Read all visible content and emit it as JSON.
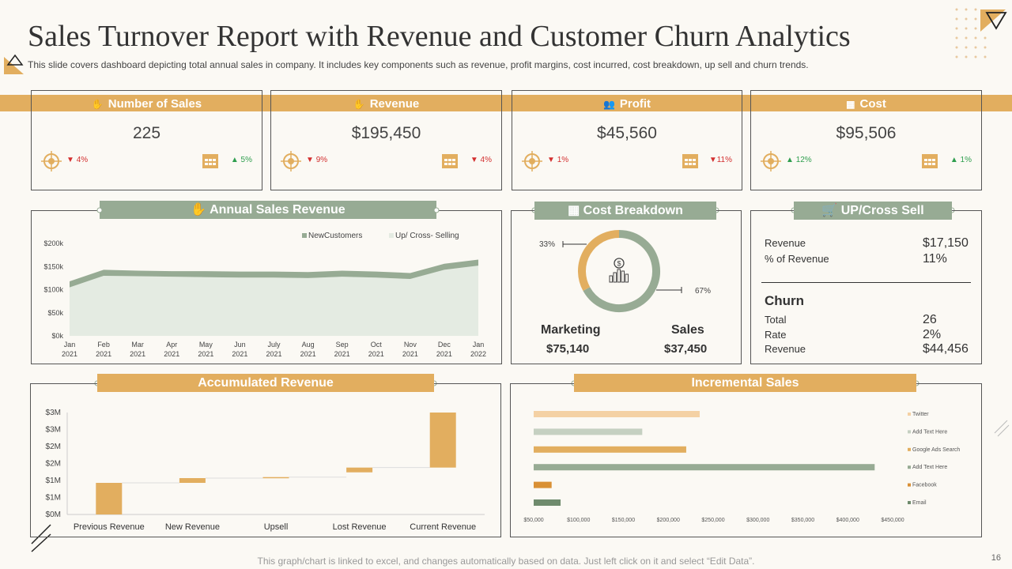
{
  "header": {
    "title": "Sales Turnover Report with Revenue and Customer Churn Analytics",
    "subtitle": "This slide covers dashboard depicting total annual sales in company. It includes key components such as revenue, profit margins, cost incurred, cost breakdown, up sell and churn trends."
  },
  "kpis": [
    {
      "title": "Number of Sales",
      "icon": "hand-coins-icon",
      "value": "225",
      "left_change": "4%",
      "left_dir": "down",
      "right_change": "5%",
      "right_dir": "up"
    },
    {
      "title": "Revenue",
      "icon": "hand-money-icon",
      "value": "$195,450",
      "left_change": "9%",
      "left_dir": "down",
      "right_change": "4%",
      "right_dir": "down"
    },
    {
      "title": "Profit",
      "icon": "people-icon",
      "value": "$45,560",
      "left_change": "1%",
      "left_dir": "down",
      "right_change": "11%",
      "right_dir": "down"
    },
    {
      "title": "Cost",
      "icon": "calculator-icon",
      "value": "$95,506",
      "left_change": "12%",
      "left_dir": "up",
      "right_change": "1%",
      "right_dir": "up"
    }
  ],
  "annual": {
    "title": "Annual Sales Revenue"
  },
  "cost_breakdown": {
    "title": "Cost Breakdown",
    "marketing_label": "Marketing",
    "marketing_value": "$75,140",
    "sales_label": "Sales",
    "sales_value": "$37,450"
  },
  "upsell": {
    "title": "UP/Cross Sell",
    "revenue_label": "Revenue",
    "revenue_value": "$17,150",
    "pct_label": "% of Revenue",
    "pct_value": "11%",
    "churn_title": "Churn",
    "total_label": "Total",
    "total_value": "26",
    "rate_label": "Rate",
    "rate_value": "2%",
    "churn_rev_label": "Revenue",
    "churn_rev_value": "$44,456"
  },
  "accumulated": {
    "title": "Accumulated Revenue"
  },
  "incremental": {
    "title": "Incremental Sales"
  },
  "footer": "This graph/chart is linked to excel,  and changes automatically based on data. Just left click on it and select “Edit Data”.",
  "page_number": "16",
  "colors": {
    "orange": "#e2ae5f",
    "green": "#97ab94",
    "light_orange": "#f4d1a4",
    "light_green": "#c5d0c1",
    "dark_green": "#6f8b6d",
    "dark_orange": "#d99035"
  },
  "chart_data": [
    {
      "type": "area",
      "title": "Annual Sales Revenue",
      "categories": [
        "Jan 2021",
        "Feb 2021",
        "Mar 2021",
        "Apr 2021",
        "May 2021",
        "Jun 2021",
        "July 2021",
        "Aug 2021",
        "Sep 2021",
        "Oct 2021",
        "Nov 2021",
        "Dec 2021",
        "Jan 2022"
      ],
      "series": [
        {
          "name": "New Customers",
          "values": [
            105,
            130,
            129,
            128,
            127,
            126,
            126,
            125,
            128,
            126,
            123,
            143,
            152
          ]
        },
        {
          "name": "Up/ Cross- Selling",
          "values": [
            13,
            13,
            12,
            12,
            13,
            13,
            13,
            13,
            13,
            13,
            13,
            13,
            13
          ]
        }
      ],
      "ylim": [
        0,
        200
      ],
      "yticks": [
        "$0k",
        "$50k",
        "$100k",
        "$150k",
        "$200k"
      ]
    },
    {
      "type": "pie",
      "title": "Cost Breakdown",
      "labels": [
        "Marketing",
        "Sales"
      ],
      "values": [
        67,
        33
      ],
      "value_labels": [
        "67%",
        "33%"
      ]
    },
    {
      "type": "bar",
      "title": "Accumulated Revenue",
      "categories": [
        "Previous Revenue",
        "New Revenue",
        "Upsell",
        "Lost Revenue",
        "Current Revenue"
      ],
      "bottoms": [
        0,
        0.93,
        1.07,
        1.24,
        1.38
      ],
      "tops": [
        0.93,
        1.07,
        1.1,
        1.38,
        3.0
      ],
      "ylim": [
        0,
        3.0
      ],
      "yticks": [
        "$0M",
        "$1M",
        "$1M",
        "$2M",
        "$2M",
        "$3M",
        "$3M"
      ]
    },
    {
      "type": "bar",
      "orientation": "horizontal",
      "title": "Incremental Sales",
      "categories": [
        "Twitter",
        "Add Text Here",
        "Google Ads Search",
        "Add Text Here",
        "Facebook",
        "Email"
      ],
      "values": [
        235000,
        171000,
        220000,
        430000,
        70000,
        80000
      ],
      "xlim": [
        50000,
        450000
      ],
      "xticks": [
        "$50,000",
        "$100,000",
        "$150,000",
        "$200,000",
        "$250,000",
        "$300,000",
        "$350,000",
        "$400,000",
        "$450,000"
      ],
      "colors": [
        "#f4d1a4",
        "#c5d0c1",
        "#e2ae5f",
        "#97ab94",
        "#d99035",
        "#6f8b6d"
      ]
    }
  ]
}
